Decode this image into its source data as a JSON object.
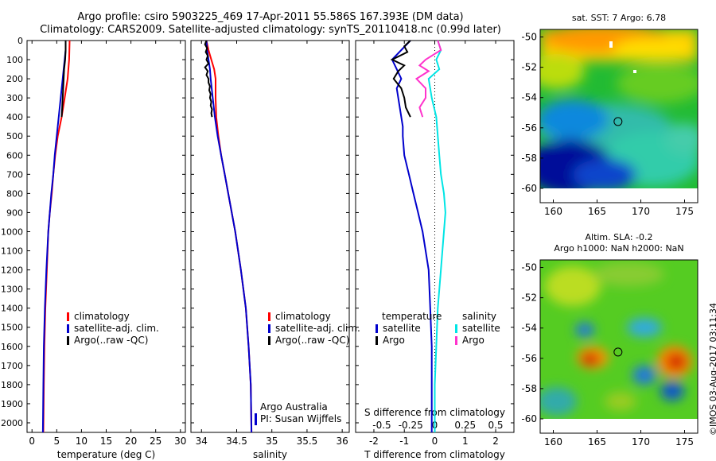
{
  "header": {
    "line1": "Argo profile: csiro 5903225_469 17-Apr-2011 55.586S 167.393E (DM data)",
    "line2": "Climatology: CARS2009. Satellite-adjusted climatology: synTS_20110418.nc (0.99d later)"
  },
  "colors": {
    "climatology": "#ff0000",
    "satellite": "#0000cc",
    "argo": "#000000",
    "sal_satellite": "#00e5e5",
    "sal_argo": "#ff33cc"
  },
  "depth_axis": {
    "ticks": [
      "0",
      "100",
      "200",
      "300",
      "400",
      "500",
      "600",
      "700",
      "800",
      "900",
      "1000",
      "1100",
      "1200",
      "1300",
      "1400",
      "1500",
      "1600",
      "1700",
      "1800",
      "1900",
      "2000"
    ]
  },
  "legend_ts": {
    "climatology": "climatology",
    "satellite": "satellite-adj. clim.",
    "argo": "Argo(..raw -QC)"
  },
  "legend_diff": {
    "temperature": "temperature",
    "salinity": "salinity",
    "satellite": "satellite",
    "argo": "Argo"
  },
  "credit": {
    "line1": "Argo Australia",
    "line2": "PI: Susan Wijffels"
  },
  "sst_map": {
    "title": "sat. SST: 7 Argo: 6.78"
  },
  "sla_map": {
    "title1": "Altim. SLA: -0.2",
    "title2": "Argo h1000: NaN h2000: NaN"
  },
  "stamp": "©IMOS 03-Aug-2017 03:11:34",
  "chart_data": [
    {
      "type": "line",
      "name": "temperature-profile",
      "xlabel": "temperature (deg C)",
      "ylabel": "",
      "xlim": [
        -1,
        31
      ],
      "ylim": [
        2050,
        0
      ],
      "y_inverted": true,
      "xticks": [
        "0",
        "5",
        "10",
        "15",
        "20",
        "25",
        "30"
      ],
      "xtick_values": [
        0,
        5,
        10,
        15,
        20,
        25,
        30
      ],
      "series": [
        {
          "name": "climatology",
          "color": "#ff0000",
          "depth": [
            0,
            100,
            200,
            300,
            400,
            500,
            600,
            700,
            800,
            900,
            1000,
            1200,
            1400,
            1600,
            1800,
            2050
          ],
          "values": [
            7.6,
            7.5,
            7.2,
            6.6,
            6.0,
            5.2,
            4.7,
            4.3,
            4.0,
            3.6,
            3.3,
            3.0,
            2.7,
            2.5,
            2.4,
            2.3
          ]
        },
        {
          "name": "satellite-adj. clim.",
          "color": "#0000cc",
          "depth": [
            0,
            50,
            100,
            150,
            200,
            300,
            400,
            500,
            600,
            700,
            800,
            900,
            1000,
            1200,
            1400,
            1600,
            1800,
            2050
          ],
          "values": [
            6.8,
            6.8,
            6.6,
            6.4,
            6.2,
            5.8,
            5.4,
            5.0,
            4.6,
            4.3,
            3.9,
            3.6,
            3.3,
            2.9,
            2.6,
            2.4,
            2.3,
            2.2
          ]
        },
        {
          "name": "Argo(..raw -QC)",
          "color": "#000000",
          "depth": [
            0,
            50,
            100,
            150,
            200,
            250,
            300,
            350,
            400
          ],
          "values": [
            6.8,
            6.8,
            6.7,
            6.5,
            6.4,
            6.3,
            6.2,
            6.1,
            6.0
          ]
        }
      ]
    },
    {
      "type": "line",
      "name": "salinity-profile",
      "xlabel": "salinity",
      "ylabel": "",
      "xlim": [
        33.85,
        36.1
      ],
      "ylim": [
        2050,
        0
      ],
      "y_inverted": true,
      "xticks": [
        "34",
        "34.5",
        "35",
        "35.5",
        "36"
      ],
      "xtick_values": [
        34,
        34.5,
        35,
        35.5,
        36
      ],
      "series": [
        {
          "name": "climatology",
          "color": "#ff0000",
          "depth": [
            0,
            50,
            100,
            150,
            200,
            300,
            400,
            500,
            600,
            700,
            800,
            900,
            1000,
            1200,
            1400,
            1600,
            1800,
            2050
          ],
          "values": [
            34.07,
            34.1,
            34.14,
            34.18,
            34.2,
            34.2,
            34.21,
            34.24,
            34.28,
            34.33,
            34.38,
            34.43,
            34.48,
            34.56,
            34.63,
            34.67,
            34.7,
            34.71
          ]
        },
        {
          "name": "satellite-adj. clim.",
          "color": "#0000cc",
          "depth": [
            0,
            50,
            100,
            150,
            200,
            300,
            400,
            500,
            600,
            700,
            800,
            900,
            1000,
            1200,
            1400,
            1600,
            1800,
            2050
          ],
          "values": [
            34.07,
            34.08,
            34.1,
            34.12,
            34.13,
            34.16,
            34.19,
            34.23,
            34.28,
            34.33,
            34.38,
            34.43,
            34.48,
            34.56,
            34.63,
            34.67,
            34.7,
            34.71
          ]
        },
        {
          "name": "Argo(..raw -QC)",
          "color": "#000000",
          "depth": [
            0,
            20,
            40,
            60,
            80,
            100,
            120,
            140,
            160,
            180,
            200,
            220,
            240,
            260,
            280,
            300,
            320,
            340,
            360,
            380,
            400
          ],
          "values": [
            34.07,
            34.05,
            34.08,
            34.06,
            34.09,
            34.07,
            34.1,
            34.05,
            34.09,
            34.07,
            34.1,
            34.1,
            34.12,
            34.11,
            34.13,
            34.12,
            34.14,
            34.13,
            34.15,
            34.14,
            34.15
          ]
        }
      ]
    },
    {
      "type": "line",
      "name": "difference-profile",
      "xlabel": "T difference from climatology",
      "xlabel_top": "S difference from climatology",
      "xlim": [
        -2.6,
        2.6
      ],
      "ylim": [
        2050,
        0
      ],
      "y_inverted": true,
      "xticks": [
        "-2",
        "-1",
        "0",
        "1",
        "2"
      ],
      "xtick_values": [
        -2,
        -1,
        0,
        1,
        2
      ],
      "xticks_top": [
        "-0.5",
        "-0.25",
        "0",
        "0.25",
        "0.5"
      ],
      "xtick_top_positions": [
        -2,
        -1,
        0,
        1,
        2
      ],
      "series": [
        {
          "name": "temperature satellite",
          "color": "#0000cc",
          "depth": [
            0,
            50,
            100,
            150,
            200,
            250,
            300,
            350,
            400,
            450,
            500,
            600,
            700,
            800,
            900,
            1000,
            1200,
            1400,
            1600,
            1800,
            2050
          ],
          "values": [
            -0.8,
            -1.1,
            -1.4,
            -1.25,
            -1.1,
            -1.25,
            -1.2,
            -1.15,
            -1.1,
            -1.05,
            -1.05,
            -1.0,
            -0.85,
            -0.7,
            -0.55,
            -0.4,
            -0.2,
            -0.15,
            -0.1,
            -0.1,
            -0.1
          ]
        },
        {
          "name": "temperature Argo",
          "color": "#000000",
          "depth": [
            0,
            30,
            60,
            100,
            130,
            160,
            200,
            250,
            300,
            350,
            400
          ],
          "values": [
            -0.8,
            -1.0,
            -0.9,
            -1.4,
            -1.0,
            -1.2,
            -1.35,
            -1.1,
            -1.0,
            -0.95,
            -0.8
          ]
        },
        {
          "name": "salinity satellite",
          "color": "#00e5e5",
          "depth": [
            0,
            50,
            100,
            150,
            200,
            300,
            400,
            500,
            600,
            700,
            800,
            900,
            1000,
            1200,
            1400,
            1600,
            1800,
            2050
          ],
          "values": [
            0.1,
            0.2,
            0.05,
            0.15,
            -0.2,
            -0.1,
            0.05,
            0.1,
            0.15,
            0.2,
            0.3,
            0.35,
            0.3,
            0.2,
            0.1,
            0.05,
            0.0,
            0.0
          ]
        },
        {
          "name": "salinity Argo",
          "color": "#ff33cc",
          "depth": [
            0,
            50,
            100,
            130,
            160,
            200,
            250,
            300,
            350,
            400
          ],
          "values": [
            0.1,
            0.2,
            -0.3,
            -0.5,
            -0.2,
            -0.6,
            -0.3,
            -0.3,
            -0.5,
            -0.4
          ]
        }
      ]
    },
    {
      "type": "heatmap",
      "name": "sat-sst-map",
      "title": "sat. SST: 7 Argo: 6.78",
      "xlim": [
        158.5,
        176.5
      ],
      "ylim": [
        -60,
        -49.5
      ],
      "xticks": [
        "160",
        "165",
        "170",
        "175"
      ],
      "xtick_values": [
        160,
        165,
        170,
        175
      ],
      "yticks": [
        "-50",
        "-52",
        "-54",
        "-56",
        "-58",
        "-60"
      ],
      "ytick_values": [
        -50,
        -52,
        -54,
        -56,
        -58,
        -60
      ],
      "argo_position": {
        "lon": 167.393,
        "lat": -55.586
      }
    },
    {
      "type": "heatmap",
      "name": "altim-sla-map",
      "title": "Altim. SLA: -0.2",
      "xlim": [
        158.5,
        176.5
      ],
      "ylim": [
        -60,
        -49.5
      ],
      "xticks": [
        "160",
        "165",
        "170",
        "175"
      ],
      "xtick_values": [
        160,
        165,
        170,
        175
      ],
      "yticks": [
        "-50",
        "-52",
        "-54",
        "-56",
        "-58",
        "-60"
      ],
      "ytick_values": [
        -50,
        -52,
        -54,
        -56,
        -58,
        -60
      ],
      "argo_position": {
        "lon": 167.393,
        "lat": -55.586
      }
    }
  ]
}
